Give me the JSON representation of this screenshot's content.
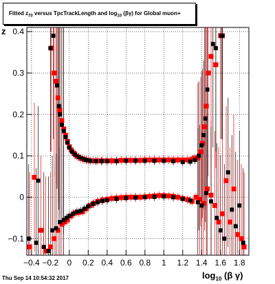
{
  "figure": {
    "title": "Fitted  z",
    "title_sub": "70",
    "title_mid": " versus TpcTrackLength and log",
    "title_sub2": "10",
    "title_end": " (βγ) for Global muon+",
    "ylabel": "z",
    "xlabel_pre": "log",
    "xlabel_sub": "10",
    "xlabel_post": " (β γ)",
    "timestamp": "Thu Sep 14 10:54:32 2017"
  },
  "chart_data": {
    "type": "scatter",
    "xlim": [
      -0.45,
      1.9
    ],
    "ylim": [
      -0.14,
      0.41
    ],
    "grid": true,
    "x_ticks": [
      -0.4,
      -0.2,
      0,
      0.2,
      0.4,
      0.6,
      0.8,
      1,
      1.2,
      1.4,
      1.6,
      1.8
    ],
    "x_tick_labels": [
      "−0.4",
      "−0.2",
      "0",
      "0.2",
      "0.4",
      "0.6",
      "0.8",
      "1",
      "1.2",
      "1.4",
      "1.6",
      "1.8"
    ],
    "y_ticks": [
      -0.1,
      0,
      0.1,
      0.2,
      0.3,
      0.4
    ],
    "y_tick_labels": [
      "−0.1",
      "0",
      "0.1",
      "0.2",
      "0.3",
      "0.4"
    ],
    "colors": {
      "red": "#ff0000",
      "black": "#000000",
      "grid": "#000000"
    },
    "series": [
      {
        "color": "red",
        "marker": "square",
        "points": [
          {
            "x": -0.19,
            "y": 0.36
          },
          {
            "x": -0.16,
            "y": 0.3
          },
          {
            "x": -0.14,
            "y": 0.28
          },
          {
            "x": -0.12,
            "y": 0.24
          },
          {
            "x": -0.1,
            "y": 0.21
          },
          {
            "x": -0.08,
            "y": 0.185
          },
          {
            "x": -0.06,
            "y": 0.165
          },
          {
            "x": -0.04,
            "y": 0.15
          },
          {
            "x": -0.02,
            "y": 0.135
          },
          {
            "x": 0.0,
            "y": 0.122
          },
          {
            "x": 0.02,
            "y": 0.114
          },
          {
            "x": 0.05,
            "y": 0.106
          },
          {
            "x": 0.08,
            "y": 0.099
          },
          {
            "x": 0.12,
            "y": 0.094
          },
          {
            "x": 0.16,
            "y": 0.091
          },
          {
            "x": 0.2,
            "y": 0.089
          },
          {
            "x": 0.25,
            "y": 0.088
          },
          {
            "x": 0.3,
            "y": 0.088
          },
          {
            "x": 0.35,
            "y": 0.088
          },
          {
            "x": 0.4,
            "y": 0.088
          },
          {
            "x": 0.45,
            "y": 0.088
          },
          {
            "x": 0.5,
            "y": 0.088
          },
          {
            "x": 0.55,
            "y": 0.089
          },
          {
            "x": 0.6,
            "y": 0.089
          },
          {
            "x": 0.65,
            "y": 0.089
          },
          {
            "x": 0.7,
            "y": 0.089
          },
          {
            "x": 0.75,
            "y": 0.089
          },
          {
            "x": 0.8,
            "y": 0.09
          },
          {
            "x": 0.85,
            "y": 0.09
          },
          {
            "x": 0.9,
            "y": 0.09
          },
          {
            "x": 0.95,
            "y": 0.09
          },
          {
            "x": 1.0,
            "y": 0.09
          },
          {
            "x": 1.05,
            "y": 0.09
          },
          {
            "x": 1.1,
            "y": 0.09
          },
          {
            "x": 1.15,
            "y": 0.09
          },
          {
            "x": 1.2,
            "y": 0.09
          },
          {
            "x": 1.25,
            "y": 0.09
          },
          {
            "x": 1.3,
            "y": 0.092
          },
          {
            "x": 1.33,
            "y": 0.095
          },
          {
            "x": 1.36,
            "y": 0.095
          },
          {
            "x": 1.39,
            "y": 0.11
          },
          {
            "x": 1.41,
            "y": 0.13
          },
          {
            "x": 1.43,
            "y": 0.17
          },
          {
            "x": 1.45,
            "y": 0.22
          },
          {
            "x": 1.47,
            "y": 0.3
          },
          {
            "x": 1.5,
            "y": 0.34
          },
          {
            "x": 1.55,
            "y": 0.32
          },
          {
            "x": 1.6,
            "y": 0.39
          },
          {
            "x": 1.62,
            "y": 0.39
          },
          {
            "x": -0.42,
            "y": -0.12
          },
          {
            "x": -0.37,
            "y": 0.048
          },
          {
            "x": -0.3,
            "y": -0.08
          },
          {
            "x": -0.25,
            "y": -0.13
          },
          {
            "x": -0.2,
            "y": -0.12
          },
          {
            "x": -0.16,
            "y": -0.1
          },
          {
            "x": -0.12,
            "y": -0.08
          },
          {
            "x": -0.08,
            "y": -0.065
          },
          {
            "x": -0.05,
            "y": -0.06
          },
          {
            "x": -0.02,
            "y": -0.055
          },
          {
            "x": 0.02,
            "y": -0.045
          },
          {
            "x": 0.06,
            "y": -0.038
          },
          {
            "x": 0.1,
            "y": -0.037
          },
          {
            "x": 0.14,
            "y": -0.035
          },
          {
            "x": 0.18,
            "y": -0.028
          },
          {
            "x": 0.22,
            "y": -0.02
          },
          {
            "x": 0.26,
            "y": -0.015
          },
          {
            "x": 0.3,
            "y": -0.01
          },
          {
            "x": 0.35,
            "y": -0.007
          },
          {
            "x": 0.4,
            "y": -0.005
          },
          {
            "x": 0.45,
            "y": -0.003
          },
          {
            "x": 0.5,
            "y": -0.002
          },
          {
            "x": 0.55,
            "y": -0.001
          },
          {
            "x": 0.6,
            "y": 0.0
          },
          {
            "x": 0.65,
            "y": 0.0
          },
          {
            "x": 0.7,
            "y": 0.0
          },
          {
            "x": 0.75,
            "y": 0.0
          },
          {
            "x": 0.8,
            "y": 0.001
          },
          {
            "x": 0.85,
            "y": 0.002
          },
          {
            "x": 0.9,
            "y": 0.003
          },
          {
            "x": 0.95,
            "y": 0.004
          },
          {
            "x": 1.0,
            "y": 0.004
          },
          {
            "x": 1.05,
            "y": 0.003
          },
          {
            "x": 1.1,
            "y": 0.002
          },
          {
            "x": 1.15,
            "y": 0.0
          },
          {
            "x": 1.2,
            "y": -0.003
          },
          {
            "x": 1.25,
            "y": -0.006
          },
          {
            "x": 1.3,
            "y": -0.01
          },
          {
            "x": 1.34,
            "y": 0.0
          },
          {
            "x": 1.38,
            "y": -0.005
          },
          {
            "x": 1.42,
            "y": -0.015
          },
          {
            "x": 1.46,
            "y": 0.02
          },
          {
            "x": 1.5,
            "y": 0.005
          },
          {
            "x": 1.54,
            "y": -0.02
          },
          {
            "x": 1.58,
            "y": -0.06
          },
          {
            "x": 1.62,
            "y": -0.04
          },
          {
            "x": 1.66,
            "y": 0.04
          },
          {
            "x": 1.7,
            "y": -0.06
          },
          {
            "x": 1.74,
            "y": 0.02
          },
          {
            "x": 1.78,
            "y": -0.09
          },
          {
            "x": 1.82,
            "y": -0.1
          },
          {
            "x": 1.85,
            "y": -0.12
          }
        ]
      },
      {
        "color": "black",
        "marker": "square",
        "points": [
          {
            "x": -0.2,
            "y": 0.36
          },
          {
            "x": -0.17,
            "y": 0.39
          },
          {
            "x": -0.13,
            "y": 0.27
          },
          {
            "x": -0.11,
            "y": 0.22
          },
          {
            "x": -0.1,
            "y": 0.2
          },
          {
            "x": -0.08,
            "y": 0.175
          },
          {
            "x": -0.06,
            "y": 0.16
          },
          {
            "x": -0.04,
            "y": 0.145
          },
          {
            "x": -0.02,
            "y": 0.132
          },
          {
            "x": 0.0,
            "y": 0.12
          },
          {
            "x": 0.03,
            "y": 0.11
          },
          {
            "x": 0.06,
            "y": 0.103
          },
          {
            "x": 0.1,
            "y": 0.097
          },
          {
            "x": 0.14,
            "y": 0.093
          },
          {
            "x": 0.18,
            "y": 0.09
          },
          {
            "x": 0.22,
            "y": 0.088
          },
          {
            "x": 0.28,
            "y": 0.087
          },
          {
            "x": 0.34,
            "y": 0.087
          },
          {
            "x": 0.4,
            "y": 0.087
          },
          {
            "x": 0.5,
            "y": 0.087
          },
          {
            "x": 0.6,
            "y": 0.088
          },
          {
            "x": 0.7,
            "y": 0.088
          },
          {
            "x": 0.8,
            "y": 0.088
          },
          {
            "x": 0.9,
            "y": 0.088
          },
          {
            "x": 1.0,
            "y": 0.088
          },
          {
            "x": 1.1,
            "y": 0.087
          },
          {
            "x": 1.2,
            "y": 0.085
          },
          {
            "x": 1.28,
            "y": 0.086
          },
          {
            "x": 1.33,
            "y": 0.09
          },
          {
            "x": 1.37,
            "y": 0.1
          },
          {
            "x": 1.4,
            "y": 0.125
          },
          {
            "x": 1.42,
            "y": 0.15
          },
          {
            "x": 1.44,
            "y": 0.19
          },
          {
            "x": 1.46,
            "y": 0.26
          },
          {
            "x": 1.52,
            "y": 0.37
          },
          {
            "x": 1.55,
            "y": 0.36
          },
          {
            "x": 1.61,
            "y": 0.39
          },
          {
            "x": 1.62,
            "y": 0.39
          },
          {
            "x": -0.43,
            "y": -0.1
          },
          {
            "x": -0.35,
            "y": -0.11
          },
          {
            "x": -0.33,
            "y": 0.04
          },
          {
            "x": -0.27,
            "y": -0.12
          },
          {
            "x": -0.22,
            "y": -0.13
          },
          {
            "x": -0.18,
            "y": -0.08
          },
          {
            "x": -0.14,
            "y": -0.075
          },
          {
            "x": -0.1,
            "y": -0.06
          },
          {
            "x": -0.06,
            "y": -0.055
          },
          {
            "x": -0.03,
            "y": -0.05
          },
          {
            "x": 0.0,
            "y": -0.045
          },
          {
            "x": 0.04,
            "y": -0.04
          },
          {
            "x": 0.08,
            "y": -0.035
          },
          {
            "x": 0.12,
            "y": -0.033
          },
          {
            "x": 0.16,
            "y": -0.028
          },
          {
            "x": 0.2,
            "y": -0.022
          },
          {
            "x": 0.25,
            "y": -0.016
          },
          {
            "x": 0.3,
            "y": -0.012
          },
          {
            "x": 0.35,
            "y": -0.009
          },
          {
            "x": 0.4,
            "y": -0.007
          },
          {
            "x": 0.5,
            "y": -0.004
          },
          {
            "x": 0.6,
            "y": -0.002
          },
          {
            "x": 0.7,
            "y": -0.001
          },
          {
            "x": 0.8,
            "y": 0.0
          },
          {
            "x": 0.9,
            "y": 0.001
          },
          {
            "x": 1.0,
            "y": 0.002
          },
          {
            "x": 1.1,
            "y": 0.0
          },
          {
            "x": 1.2,
            "y": -0.004
          },
          {
            "x": 1.28,
            "y": -0.008
          },
          {
            "x": 1.36,
            "y": -0.012
          },
          {
            "x": 1.4,
            "y": -0.02
          },
          {
            "x": 1.45,
            "y": 0.01
          },
          {
            "x": 1.5,
            "y": -0.01
          },
          {
            "x": 1.56,
            "y": -0.05
          },
          {
            "x": 1.6,
            "y": -0.08
          },
          {
            "x": 1.64,
            "y": -0.1
          },
          {
            "x": 1.68,
            "y": 0.06
          },
          {
            "x": 1.72,
            "y": -0.03
          },
          {
            "x": 1.76,
            "y": -0.07
          },
          {
            "x": 1.8,
            "y": -0.02
          },
          {
            "x": 1.84,
            "y": -0.11
          }
        ]
      }
    ]
  }
}
